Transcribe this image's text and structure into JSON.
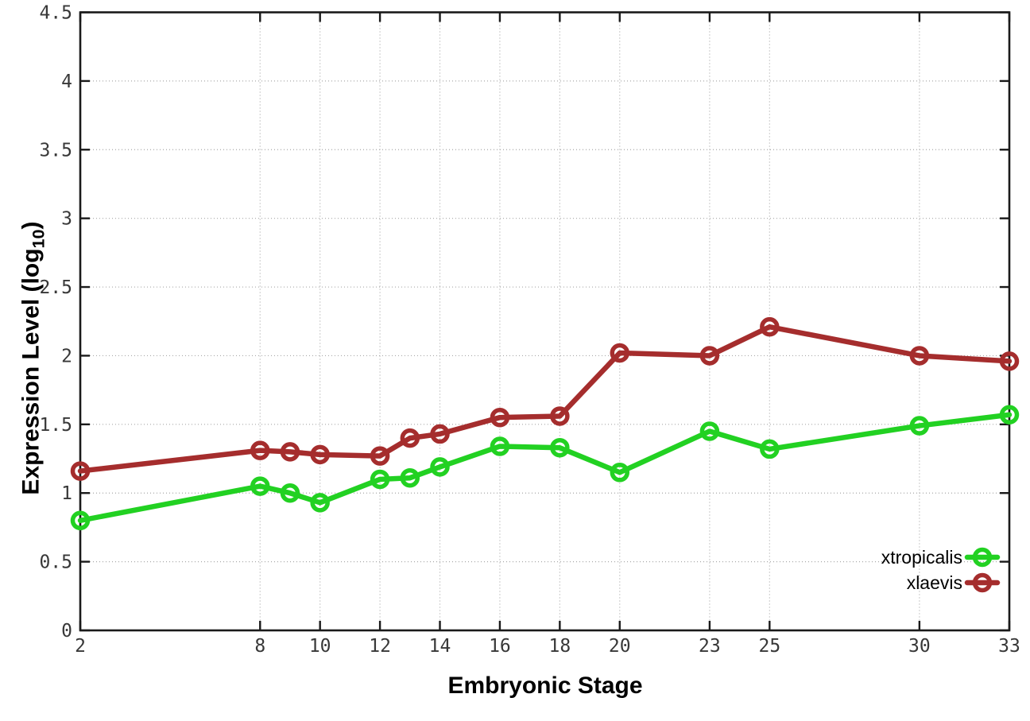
{
  "chart_data": {
    "type": "line",
    "title": "",
    "xlabel": "Embryonic Stage",
    "ylabel": "Expression Level (log10)",
    "ylabel_parts": {
      "pre": "Expression Level (log",
      "sub": "10",
      "post": ")"
    },
    "xlim": [
      2,
      33
    ],
    "ylim": [
      0,
      4.5
    ],
    "x_ticks": [
      2,
      8,
      10,
      12,
      14,
      16,
      18,
      20,
      23,
      25,
      30,
      33
    ],
    "y_ticks": [
      0,
      0.5,
      1,
      1.5,
      2,
      2.5,
      3,
      3.5,
      4,
      4.5
    ],
    "grid": true,
    "legend_position": "bottom-right",
    "marker": "open-circle",
    "series": [
      {
        "name": "xtropicalis",
        "color": "#22d122",
        "x": [
          2,
          8,
          9,
          10,
          12,
          13,
          14,
          16,
          18,
          20,
          23,
          25,
          30,
          33
        ],
        "values": [
          0.8,
          1.05,
          1.0,
          0.93,
          1.1,
          1.11,
          1.19,
          1.34,
          1.33,
          1.15,
          1.45,
          1.32,
          1.49,
          1.57
        ]
      },
      {
        "name": "xlaevis",
        "color": "#a52d2d",
        "x": [
          2,
          8,
          9,
          10,
          12,
          13,
          14,
          16,
          18,
          20,
          23,
          25,
          30,
          33
        ],
        "values": [
          1.16,
          1.31,
          1.3,
          1.28,
          1.27,
          1.4,
          1.43,
          1.55,
          1.56,
          2.02,
          2.0,
          2.21,
          2.0,
          1.96
        ]
      }
    ],
    "colors": {
      "border": "#1a1a1a",
      "grid": "#a8a8a8",
      "tick_label": "#383838",
      "axis_title": "#000000",
      "legend_text": "#000000",
      "background": "#ffffff"
    }
  }
}
